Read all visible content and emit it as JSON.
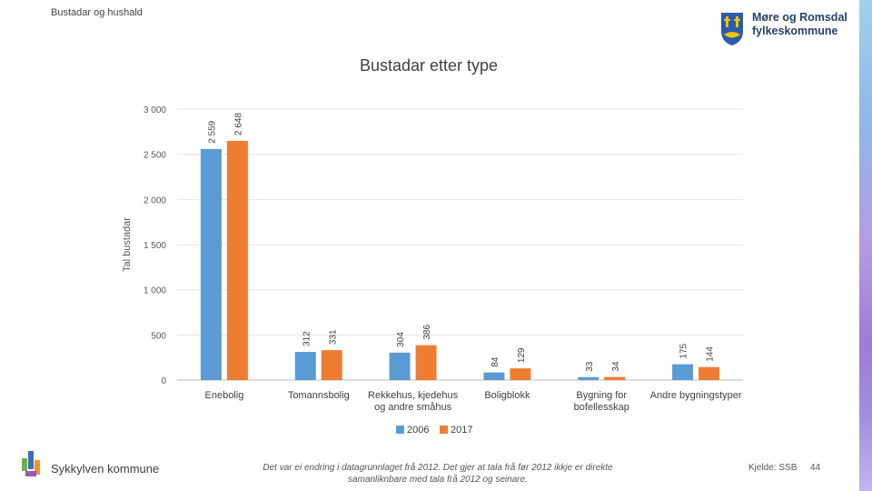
{
  "header": {
    "section_label": "Bustadar og hushald",
    "brand_line1": "Møre og Romsdal",
    "brand_line2": "fylkeskommune"
  },
  "chart_data": {
    "type": "bar",
    "title": "Bustadar etter type",
    "ylabel": "Tal bustadar",
    "xlabel": "",
    "ylim": [
      0,
      3000
    ],
    "yticks": [
      0,
      500,
      1000,
      1500,
      2000,
      2500,
      3000
    ],
    "ytick_labels": [
      "0",
      "500",
      "1 000",
      "1 500",
      "2 000",
      "2 500",
      "3 000"
    ],
    "grid": true,
    "legend_position": "bottom",
    "categories": [
      [
        "Enebolig"
      ],
      [
        "Tomannsbolig"
      ],
      [
        "Rekkehus, kjedehus",
        "og andre småhus"
      ],
      [
        "Boligblokk"
      ],
      [
        "Bygning for",
        "bofellesskap"
      ],
      [
        "Andre bygningstyper"
      ]
    ],
    "series": [
      {
        "name": "2006",
        "color": "#5b9bd5",
        "values": [
          2559,
          312,
          304,
          84,
          33,
          175
        ],
        "labels": [
          "2 559",
          "312",
          "304",
          "84",
          "33",
          "175"
        ]
      },
      {
        "name": "2017",
        "color": "#ed7d31",
        "values": [
          2648,
          331,
          386,
          129,
          34,
          144
        ],
        "labels": [
          "2 648",
          "331",
          "386",
          "129",
          "34",
          "144"
        ]
      }
    ]
  },
  "footer": {
    "organization": "Sykkylven kommune",
    "note": "Det var ei endring i datagrunnlaget frå 2012. Det gjer at tala frå før 2012 ikkje er direkte samanliknbare med tala frå 2012 og seinare.",
    "source": "Kjelde: SSB",
    "page_number": "44"
  }
}
